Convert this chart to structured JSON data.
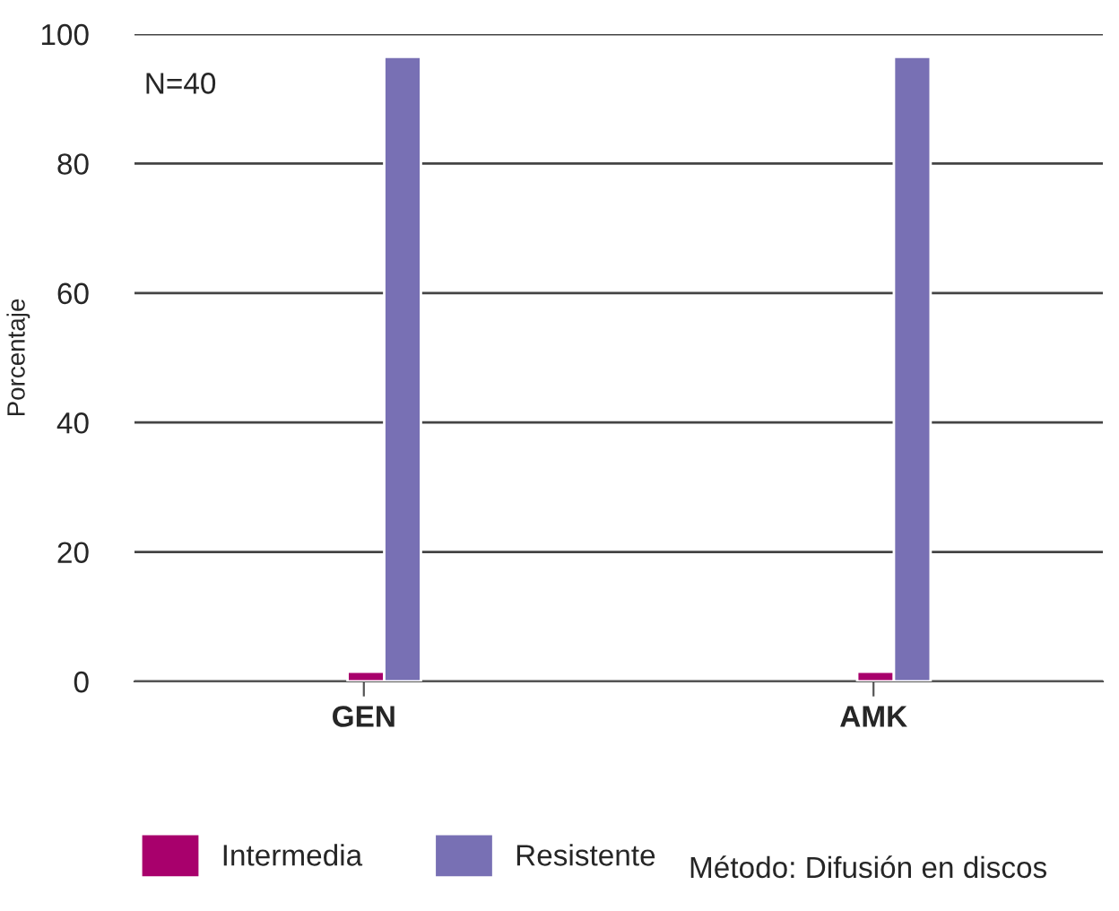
{
  "chart_data": {
    "type": "bar",
    "ylabel": "Porcentaje",
    "categories": [
      "GEN",
      "AMK"
    ],
    "series": [
      {
        "name": "Intermedia",
        "color": "#a8006c",
        "values": [
          1.5,
          1.5
        ]
      },
      {
        "name": "Resistente",
        "color": "#7870b4",
        "values": [
          96.5,
          96.5
        ]
      }
    ],
    "ylim": [
      0,
      100
    ],
    "yticks": [
      0,
      20,
      40,
      60,
      80,
      100
    ],
    "grid": "y",
    "legend": "bottom",
    "annotations": [
      "N=40",
      "Método: Difusión en discos"
    ]
  }
}
